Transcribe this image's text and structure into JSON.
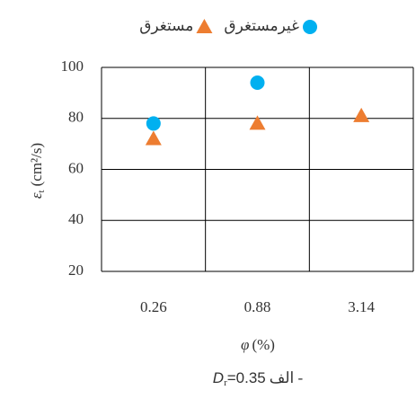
{
  "chart_data": {
    "type": "scatter",
    "categories": [
      "0.26",
      "0.88",
      "3.14"
    ],
    "series": [
      {
        "name": "غیرمستغرق",
        "color": "#00b0f0",
        "marker": "circle",
        "values": [
          78,
          94,
          null
        ]
      },
      {
        "name": "مستغرق",
        "color": "#ed7d31",
        "marker": "triangle",
        "values": [
          72,
          78,
          81
        ]
      }
    ],
    "ylim": [
      20,
      100
    ],
    "yticks": [
      20,
      40,
      60,
      80,
      100
    ],
    "grid": true,
    "y_label": {
      "symbol": "ε",
      "subscript": "t",
      "unit": "(cm²/s)"
    },
    "x_label": {
      "symbol": "φ",
      "unit": "(%)"
    },
    "caption": {
      "prefix": "الف -",
      "symbol": "D",
      "subscript": "r",
      "value": "=0.35"
    },
    "legend": "top"
  }
}
